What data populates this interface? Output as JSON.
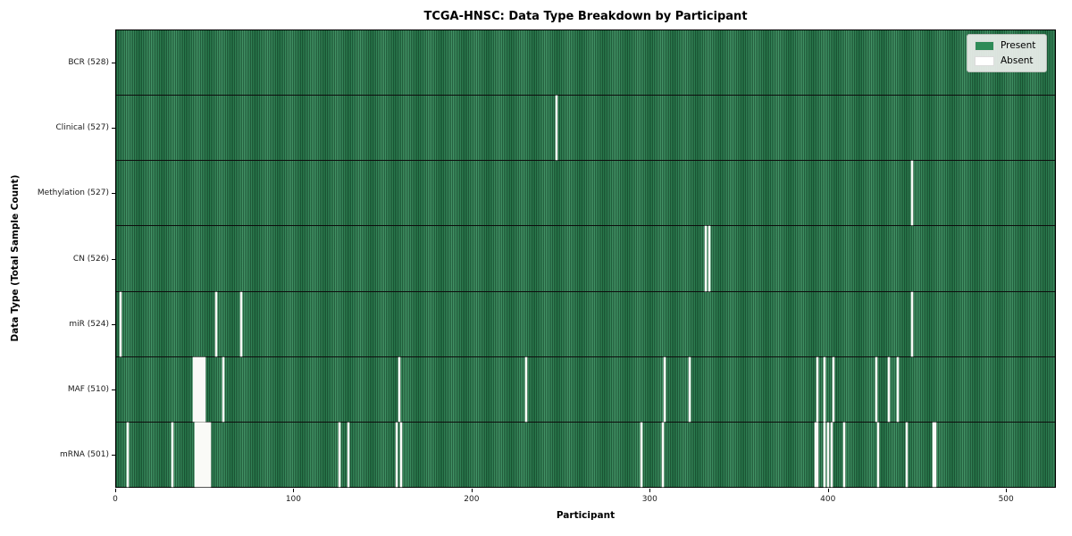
{
  "title": "TCGA-HNSC: Data Type Breakdown by Participant",
  "legend": {
    "present_label": "Present",
    "absent_label": "Absent"
  },
  "colors": {
    "present": "#2e8b57",
    "present_edge": "#1e5c3a",
    "absent": "#ffffff",
    "legend_bg": "#ebefeb"
  },
  "chart_data": {
    "type": "heatmap",
    "title": "TCGA-HNSC: Data Type Breakdown by Participant",
    "xlabel": "Participant",
    "ylabel": "Data Type (Total Sample Count)",
    "legend": [
      "Present",
      "Absent"
    ],
    "legend_position": "upper right",
    "grid": false,
    "x_range": [
      0,
      528
    ],
    "x_ticks": [
      0,
      100,
      200,
      300,
      400,
      500
    ],
    "rows": [
      {
        "key": "bcr",
        "label": "BCR (528)",
        "data_type": "BCR",
        "present_count": 528,
        "absent_participants": []
      },
      {
        "key": "clinical",
        "label": "Clinical (527)",
        "data_type": "Clinical",
        "present_count": 527,
        "absent_participants": [
          247
        ]
      },
      {
        "key": "methylation",
        "label": "Methylation (527)",
        "data_type": "Methylation",
        "present_count": 527,
        "absent_participants": [
          447
        ]
      },
      {
        "key": "cn",
        "label": "CN (526)",
        "data_type": "CN",
        "present_count": 526,
        "absent_participants": [
          331,
          333
        ]
      },
      {
        "key": "mir",
        "label": "miR (524)",
        "data_type": "miR",
        "present_count": 524,
        "absent_participants": [
          2,
          56,
          70,
          447
        ]
      },
      {
        "key": "maf",
        "label": "MAF (510)",
        "data_type": "MAF",
        "present_count": 510,
        "absent_participants": [
          43,
          44,
          45,
          46,
          47,
          48,
          49,
          60,
          159,
          230,
          308,
          322,
          394,
          398,
          403,
          427,
          434,
          439
        ]
      },
      {
        "key": "mrna",
        "label": "mRNA (501)",
        "data_type": "mRNA",
        "present_count": 501,
        "absent_participants": [
          6,
          31,
          44,
          45,
          46,
          47,
          48,
          49,
          50,
          51,
          52,
          125,
          130,
          157,
          160,
          295,
          307,
          393,
          394,
          398,
          400,
          402,
          409,
          428,
          444,
          459,
          460
        ]
      }
    ]
  }
}
